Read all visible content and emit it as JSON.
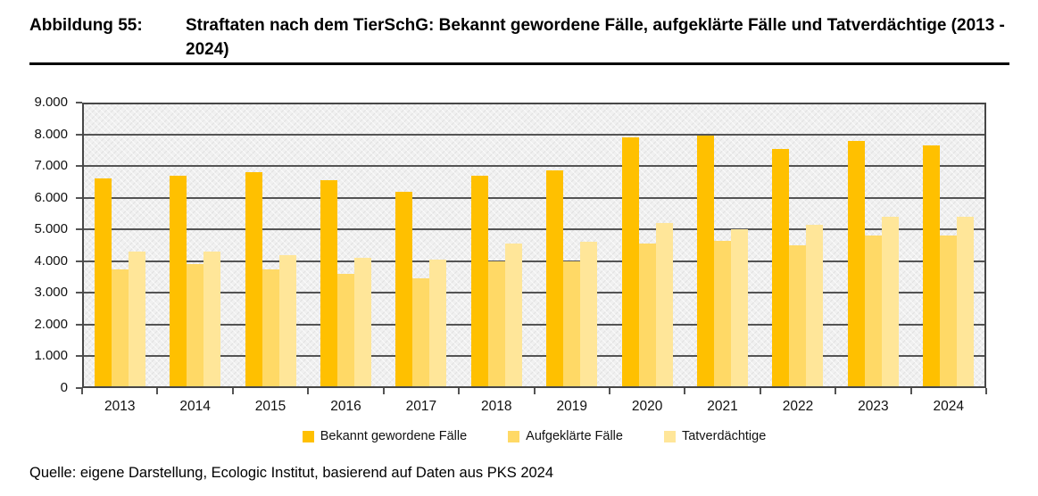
{
  "figure": {
    "label": "Abbildung 55:",
    "title": "Straftaten nach dem TierSchG: Bekannt gewordene Fälle, aufgeklärte Fälle und Tatverdächtige (2013 - 2024)"
  },
  "source": "Quelle: eigene Darstellung, Ecologic Institut, basierend auf Daten aus PKS 2024",
  "chart_data": {
    "type": "bar",
    "title": "Straftaten nach dem TierSchG: Bekannt gewordene Fälle, aufgeklärte Fälle und Tatverdächtige (2013 - 2024)",
    "categories": [
      "2013",
      "2014",
      "2015",
      "2016",
      "2017",
      "2018",
      "2019",
      "2020",
      "2021",
      "2022",
      "2023",
      "2024"
    ],
    "series": [
      {
        "name": "Bekannt gewordene Fälle",
        "color": "#FFC000",
        "values": [
          6600,
          6700,
          6800,
          6550,
          6200,
          6700,
          6850,
          7900,
          7950,
          7550,
          7800,
          7650
        ]
      },
      {
        "name": "Aufgeklärte Fälle",
        "color": "#FFD966",
        "values": [
          3750,
          3900,
          3750,
          3600,
          3450,
          4000,
          4000,
          4550,
          4650,
          4500,
          4800,
          4800
        ]
      },
      {
        "name": "Tatverdächtige",
        "color": "#FFE699",
        "values": [
          4300,
          4300,
          4200,
          4100,
          4050,
          4550,
          4600,
          5200,
          5000,
          5150,
          5400,
          5400
        ]
      }
    ],
    "xlabel": "",
    "ylabel": "",
    "ylim": [
      0,
      9000
    ],
    "ytick_step": 1000,
    "ytick_labels": [
      "0",
      "1.000",
      "2.000",
      "3.000",
      "4.000",
      "5.000",
      "6.000",
      "7.000",
      "8.000",
      "9.000"
    ],
    "grid": true,
    "legend_position": "bottom",
    "plot_background": "#f0f0f0",
    "gridline_color": "#545454"
  }
}
